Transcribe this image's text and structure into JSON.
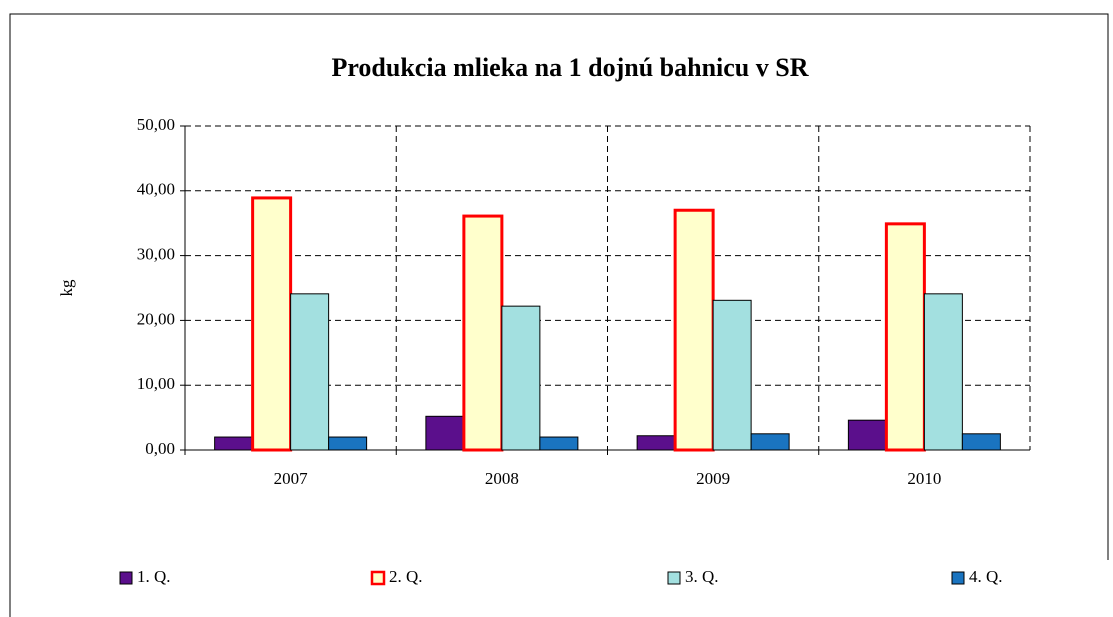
{
  "chart_data": {
    "type": "bar",
    "title": "Produkcia mlieka na 1 dojnú bahnicu v SR",
    "ylabel": "kg",
    "categories": [
      "2007",
      "2008",
      "2009",
      "2010"
    ],
    "series": [
      {
        "name": "1. Q.",
        "color": "#5b0f8c",
        "edgecolor": "#000000",
        "values": [
          2.0,
          5.2,
          2.2,
          4.6
        ]
      },
      {
        "name": "2. Q.",
        "color": "#ffffcc",
        "edgecolor": "#ff0000",
        "values": [
          38.9,
          36.1,
          37.0,
          34.9
        ]
      },
      {
        "name": "3. Q.",
        "color": "#a3e0e0",
        "edgecolor": "#000000",
        "values": [
          24.1,
          22.2,
          23.1,
          24.1
        ]
      },
      {
        "name": "4. Q.",
        "color": "#1a74c0",
        "edgecolor": "#000000",
        "values": [
          2.0,
          2.0,
          2.5,
          2.5
        ]
      }
    ],
    "ylim": [
      0,
      50
    ],
    "yticks": [
      {
        "value": 0,
        "label": "0,00"
      },
      {
        "value": 10,
        "label": "10,00"
      },
      {
        "value": 20,
        "label": "20,00"
      },
      {
        "value": 30,
        "label": "30,00"
      },
      {
        "value": 40,
        "label": "40,00"
      },
      {
        "value": 50,
        "label": "50,00"
      }
    ],
    "grid": true,
    "legend": "bottom"
  }
}
